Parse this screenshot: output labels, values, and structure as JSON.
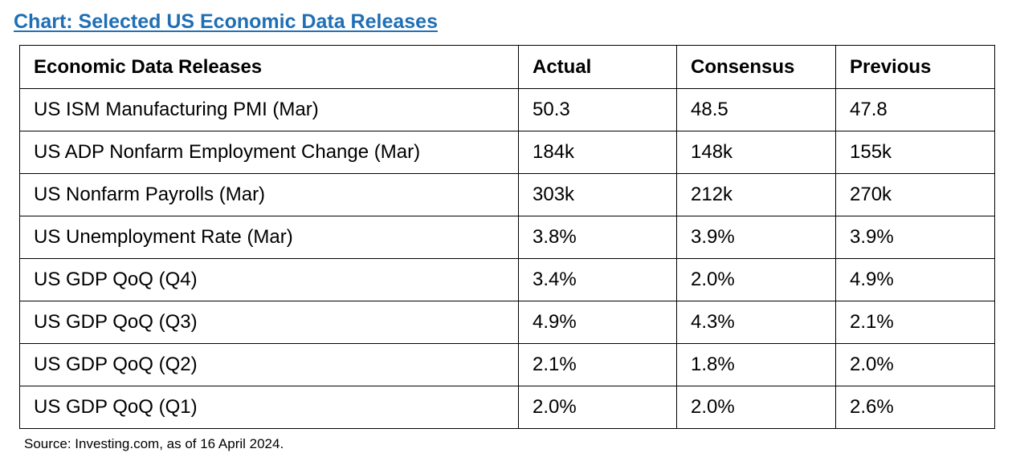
{
  "title": "Chart: Selected US Economic Data Releases",
  "table": {
    "headers": [
      "Economic Data Releases",
      "Actual",
      "Consensus",
      "Previous"
    ],
    "rows": [
      [
        "US ISM Manufacturing PMI (Mar)",
        "50.3",
        "48.5",
        "47.8"
      ],
      [
        "US ADP Nonfarm Employment Change (Mar)",
        "184k",
        "148k",
        "155k"
      ],
      [
        "US Nonfarm Payrolls (Mar)",
        "303k",
        "212k",
        "270k"
      ],
      [
        "US Unemployment Rate (Mar)",
        "3.8%",
        "3.9%",
        "3.9%"
      ],
      [
        "US GDP QoQ (Q4)",
        "3.4%",
        "2.0%",
        "4.9%"
      ],
      [
        "US GDP QoQ (Q3)",
        "4.9%",
        "4.3%",
        "2.1%"
      ],
      [
        "US GDP QoQ (Q2)",
        "2.1%",
        "1.8%",
        "2.0%"
      ],
      [
        "US GDP QoQ (Q1)",
        "2.0%",
        "2.0%",
        "2.6%"
      ]
    ]
  },
  "source": "Source: Investing.com, as of 16 April 2024.",
  "colors": {
    "title": "#1f6fb5",
    "border": "#000000",
    "text": "#000000"
  }
}
